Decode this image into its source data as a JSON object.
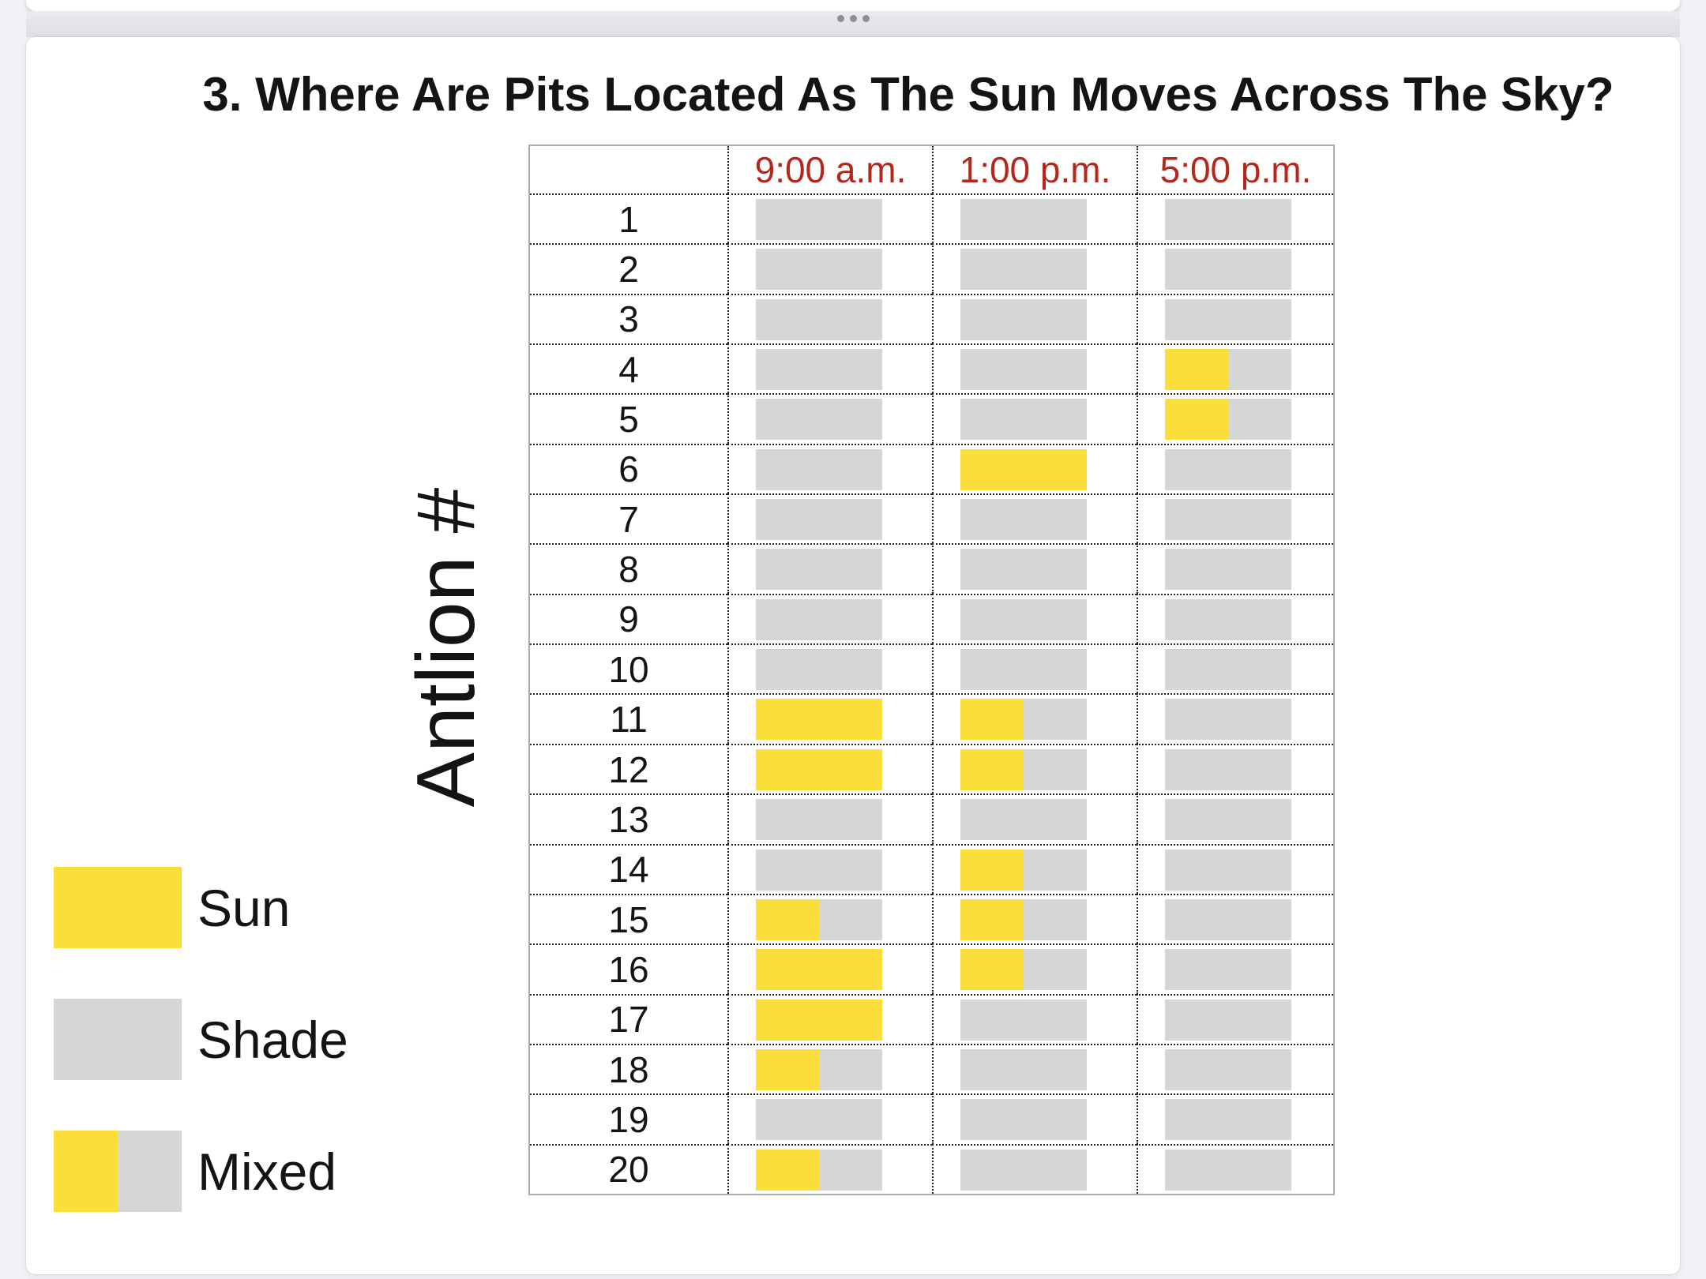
{
  "title": "3. Where Are Pits Located As The Sun Moves Across The Sky?",
  "page_separator": {
    "dot_count": 3
  },
  "colors": {
    "page_bg": "#F2F2F6",
    "card_bg": "#FFFFFF",
    "table_border": "#ACACB0",
    "grid_line": "#222222",
    "text": "#141414",
    "separator_dot": "#8E8E93"
  },
  "chart_data": {
    "type": "table",
    "title": "3. Where Are Pits Located As The Sun Moves Across The Sky?",
    "columns": [
      "9:00 a.m.",
      "1:00 p.m.",
      "5:00 p.m."
    ],
    "row_axis_label": "Antlion #",
    "cell_states": [
      "sun",
      "shade",
      "mixed"
    ],
    "mixed_sun_fraction": 0.5,
    "rows": [
      {
        "antlion": "1",
        "values": [
          "shade",
          "shade",
          "shade"
        ]
      },
      {
        "antlion": "2",
        "values": [
          "shade",
          "shade",
          "shade"
        ]
      },
      {
        "antlion": "3",
        "values": [
          "shade",
          "shade",
          "shade"
        ]
      },
      {
        "antlion": "4",
        "values": [
          "shade",
          "shade",
          "mixed"
        ]
      },
      {
        "antlion": "5",
        "values": [
          "shade",
          "shade",
          "mixed"
        ]
      },
      {
        "antlion": "6",
        "values": [
          "shade",
          "sun",
          "shade"
        ]
      },
      {
        "antlion": "7",
        "values": [
          "shade",
          "shade",
          "shade"
        ]
      },
      {
        "antlion": "8",
        "values": [
          "shade",
          "shade",
          "shade"
        ]
      },
      {
        "antlion": "9",
        "values": [
          "shade",
          "shade",
          "shade"
        ]
      },
      {
        "antlion": "10",
        "values": [
          "shade",
          "shade",
          "shade"
        ]
      },
      {
        "antlion": "11",
        "values": [
          "sun",
          "mixed",
          "shade"
        ]
      },
      {
        "antlion": "12",
        "values": [
          "sun",
          "mixed",
          "shade"
        ]
      },
      {
        "antlion": "13",
        "values": [
          "shade",
          "shade",
          "shade"
        ]
      },
      {
        "antlion": "14",
        "values": [
          "shade",
          "mixed",
          "shade"
        ]
      },
      {
        "antlion": "15",
        "values": [
          "mixed",
          "mixed",
          "shade"
        ]
      },
      {
        "antlion": "16",
        "values": [
          "sun",
          "mixed",
          "shade"
        ]
      },
      {
        "antlion": "17",
        "values": [
          "sun",
          "shade",
          "shade"
        ]
      },
      {
        "antlion": "18",
        "values": [
          "mixed",
          "shade",
          "shade"
        ]
      },
      {
        "antlion": "19",
        "values": [
          "shade",
          "shade",
          "shade"
        ]
      },
      {
        "antlion": "20",
        "values": [
          "mixed",
          "shade",
          "shade"
        ]
      }
    ],
    "legend": [
      {
        "label": "Sun",
        "type": "sun"
      },
      {
        "label": "Shade",
        "type": "shade"
      },
      {
        "label": "Mixed",
        "type": "mixed"
      }
    ],
    "colors": {
      "sun": "#FBDE3A",
      "shade": "#D6D6D6",
      "header_text": "#B3271D"
    },
    "layout": {
      "legend_position": "left",
      "grid": "dotted",
      "legend_order": [
        "Sun",
        "Shade",
        "Mixed"
      ]
    }
  }
}
